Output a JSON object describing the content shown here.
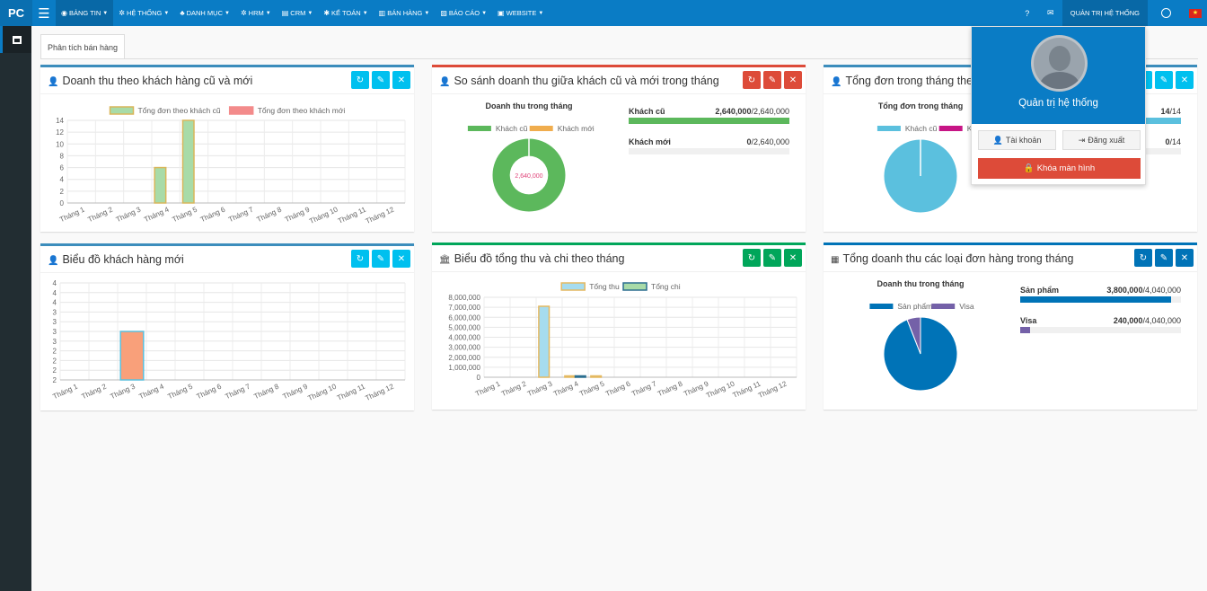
{
  "brand": "PC",
  "menu": [
    {
      "label": "Bảng tin",
      "icon": "dashboard-icon",
      "glyph": "◉"
    },
    {
      "label": "Hệ thống",
      "icon": "cogs-icon",
      "glyph": "✲"
    },
    {
      "label": "Danh mục",
      "icon": "sitemap-icon",
      "glyph": "♣"
    },
    {
      "label": "HRM",
      "icon": "users-cog-icon",
      "glyph": "✲"
    },
    {
      "label": "CRM",
      "icon": "address-card-icon",
      "glyph": "▤"
    },
    {
      "label": "Kế toán",
      "icon": "calculator-icon",
      "glyph": "✱"
    },
    {
      "label": "Bán hàng",
      "icon": "shopping-icon",
      "glyph": "▥"
    },
    {
      "label": "Báo cáo",
      "icon": "bar-chart-icon",
      "glyph": "▨"
    },
    {
      "label": "Website",
      "icon": "web-icon",
      "glyph": "▣"
    }
  ],
  "top_right": {
    "user": "Quản trị hệ thống"
  },
  "tab": {
    "label": "Phân tích bán hàng"
  },
  "months": [
    "Tháng 1",
    "Tháng 2",
    "Tháng 3",
    "Tháng 4",
    "Tháng 5",
    "Tháng 6",
    "Tháng 7",
    "Tháng 8",
    "Tháng 9",
    "Tháng 10",
    "Tháng 11",
    "Tháng 12"
  ],
  "boxes": {
    "b1": {
      "title": "Doanh thu theo khách hàng cũ và mới"
    },
    "b2": {
      "title": "So sánh doanh thu giữa khách cũ và mới trong tháng",
      "chart_title": "Doanh thu trong tháng",
      "center_label": "2,640,000",
      "rows": [
        {
          "label": "Khách cũ",
          "value": "2,640,000",
          "total": "/2,640,000"
        },
        {
          "label": "Khách mới",
          "value": "0",
          "total": "/2,640,000"
        }
      ]
    },
    "b3": {
      "title": "Tổng đơn trong tháng theo khách cũ và mới",
      "chart_title": "Tổng đơn trong tháng",
      "rows": [
        {
          "value": "14",
          "total": "/14"
        },
        {
          "value": "0",
          "total": "/14"
        }
      ]
    },
    "b4": {
      "title": "Biểu đồ khách hàng mới"
    },
    "b5": {
      "title": "Biểu đồ tổng thu và chi theo tháng"
    },
    "b6": {
      "title": "Tổng doanh thu các loại đơn hàng trong tháng",
      "chart_title": "Doanh thu trong tháng",
      "rows": [
        {
          "label": "Sản phẩm",
          "value": "3,800,000",
          "total": "/4,040,000"
        },
        {
          "label": "Visa",
          "value": "240,000",
          "total": "/4,040,000"
        }
      ]
    }
  },
  "dropdown": {
    "name": "Quản trị hệ thống",
    "account": "Tài khoản",
    "logout": "Đăng xuất",
    "lock": "Khóa màn hình"
  },
  "chart_data": [
    {
      "type": "bar",
      "title": "",
      "xlabel": "",
      "ylabel": "",
      "categories": [
        "Tháng 1",
        "Tháng 2",
        "Tháng 3",
        "Tháng 4",
        "Tháng 5",
        "Tháng 6",
        "Tháng 7",
        "Tháng 8",
        "Tháng 9",
        "Tháng 10",
        "Tháng 11",
        "Tháng 12"
      ],
      "ylim": [
        0,
        14
      ],
      "yticks": [
        0,
        2,
        4,
        6,
        8,
        10,
        12,
        14
      ],
      "legend": "top",
      "series": [
        {
          "name": "Tổng đơn theo khách cũ",
          "color": "#a8dba8",
          "border": "#d9b65a",
          "values": [
            0,
            0,
            0,
            6,
            14,
            0,
            0,
            0,
            0,
            0,
            0,
            0
          ]
        },
        {
          "name": "Tổng đơn theo khách mới",
          "color": "#f38b8b",
          "values": [
            0,
            0,
            0,
            0,
            0,
            0,
            0,
            0,
            0,
            0,
            0,
            0
          ]
        }
      ]
    },
    {
      "type": "pie",
      "title": "Doanh thu trong tháng",
      "donut": true,
      "legend": "top",
      "labels": [
        "Khách cũ",
        "Khách mới"
      ],
      "values": [
        2640000,
        0
      ],
      "colors": [
        "#5cb85c",
        "#f0ad4e"
      ]
    },
    {
      "type": "pie",
      "title": "Tổng đơn trong tháng",
      "donut": false,
      "legend": "top",
      "labels": [
        "Khách cũ",
        "Khách mới"
      ],
      "values": [
        14,
        0
      ],
      "colors": [
        "#5bc0de",
        "#c71585"
      ]
    },
    {
      "type": "bar",
      "title": "",
      "xlabel": "",
      "ylabel": "",
      "categories": [
        "Tháng 1",
        "Tháng 2",
        "Tháng 3",
        "Tháng 4",
        "Tháng 5",
        "Tháng 6",
        "Tháng 7",
        "Tháng 8",
        "Tháng 9",
        "Tháng 10",
        "Tháng 11",
        "Tháng 12"
      ],
      "ylim": [
        2,
        4
      ],
      "ytick_labels": [
        "4",
        "4",
        "4",
        "3",
        "3",
        "3",
        "3",
        "2",
        "2",
        "2",
        "2"
      ],
      "legend": "none",
      "series": [
        {
          "name": "",
          "color": "#f9a07a",
          "border": "#5bc0de",
          "values": [
            0,
            0,
            3,
            0,
            0,
            0,
            0,
            0,
            0,
            0,
            0,
            0
          ]
        }
      ]
    },
    {
      "type": "bar",
      "title": "",
      "xlabel": "",
      "ylabel": "",
      "categories": [
        "Tháng 1",
        "Tháng 2",
        "Tháng 3",
        "Tháng 4",
        "Tháng 5",
        "Tháng 6",
        "Tháng 7",
        "Tháng 8",
        "Tháng 9",
        "Tháng 10",
        "Tháng 11",
        "Tháng 12"
      ],
      "ylim": [
        0,
        8000000
      ],
      "yticks": [
        0,
        1000000,
        2000000,
        3000000,
        4000000,
        5000000,
        6000000,
        7000000,
        8000000
      ],
      "legend": "top",
      "series": [
        {
          "name": "Tổng thu",
          "color": "#a6dcef",
          "border": "#e4b961",
          "values": [
            0,
            0,
            7100000,
            90000,
            70000,
            0,
            0,
            0,
            0,
            0,
            0,
            0
          ]
        },
        {
          "name": "Tổng chi",
          "color": "#a8dba8",
          "border": "#2b6e8f",
          "values": [
            0,
            0,
            0,
            60000,
            0,
            0,
            0,
            0,
            0,
            0,
            0,
            0
          ]
        }
      ]
    },
    {
      "type": "pie",
      "title": "Doanh thu trong tháng",
      "donut": false,
      "legend": "top",
      "labels": [
        "Sản phẩm",
        "Visa"
      ],
      "values": [
        3800000,
        240000
      ],
      "colors": [
        "#0073b7",
        "#7461a8"
      ]
    }
  ]
}
